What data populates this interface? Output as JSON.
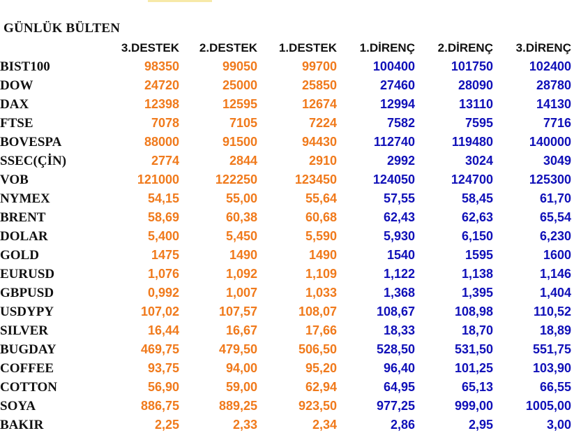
{
  "title": "GÜNLÜK BÜLTEN",
  "colors": {
    "support": "#f07a1c",
    "resistance": "#1010b8",
    "label": "#111111"
  },
  "columns": [
    "3.DESTEK",
    "2.DESTEK",
    "1.DESTEK",
    "1.DİRENÇ",
    "2.DİRENÇ",
    "3.DİRENÇ"
  ],
  "rows": [
    {
      "name": "BIST100",
      "values": [
        "98350",
        "99050",
        "99700",
        "100400",
        "101750",
        "102400"
      ]
    },
    {
      "name": "DOW",
      "values": [
        "24720",
        "25000",
        "25850",
        "27460",
        "28090",
        "28780"
      ]
    },
    {
      "name": "DAX",
      "values": [
        "12398",
        "12595",
        "12674",
        "12994",
        "13110",
        "14130"
      ]
    },
    {
      "name": "FTSE",
      "values": [
        "7078",
        "7105",
        "7224",
        "7582",
        "7595",
        "7716"
      ]
    },
    {
      "name": "BOVESPA",
      "values": [
        "88000",
        "91500",
        "94430",
        "112740",
        "119480",
        "140000"
      ]
    },
    {
      "name": "SSEC(ÇİN)",
      "values": [
        "2774",
        "2844",
        "2910",
        "2992",
        "3024",
        "3049"
      ]
    },
    {
      "name": "VOB",
      "values": [
        "121000",
        "122250",
        "123450",
        "124050",
        "124700",
        "125300"
      ]
    },
    {
      "name": "NYMEX",
      "values": [
        "54,15",
        "55,00",
        "55,64",
        "57,55",
        "58,45",
        "61,70"
      ]
    },
    {
      "name": "BRENT",
      "values": [
        "58,69",
        "60,38",
        "60,68",
        "62,43",
        "62,63",
        "65,54"
      ]
    },
    {
      "name": "DOLAR",
      "values": [
        "5,400",
        "5,450",
        "5,590",
        "5,930",
        "6,150",
        "6,230"
      ]
    },
    {
      "name": "GOLD",
      "values": [
        "1475",
        "1490",
        "1490",
        "1540",
        "1595",
        "1600"
      ]
    },
    {
      "name": "EURUSD",
      "values": [
        "1,076",
        "1,092",
        "1,109",
        "1,122",
        "1,138",
        "1,146"
      ]
    },
    {
      "name": "GBPUSD",
      "values": [
        "0,992",
        "1,007",
        "1,033",
        "1,368",
        "1,395",
        "1,404"
      ]
    },
    {
      "name": "USDYPY",
      "values": [
        "107,02",
        "107,57",
        "108,07",
        "108,67",
        "108,98",
        "110,52"
      ]
    },
    {
      "name": "SILVER",
      "values": [
        "16,44",
        "16,67",
        "17,66",
        "18,33",
        "18,70",
        "18,89"
      ]
    },
    {
      "name": "BUGDAY",
      "values": [
        "469,75",
        "479,50",
        "506,50",
        "528,50",
        "531,50",
        "551,75"
      ]
    },
    {
      "name": "COFFEE",
      "values": [
        "93,75",
        "94,00",
        "95,20",
        "96,40",
        "101,25",
        "103,90"
      ]
    },
    {
      "name": "COTTON",
      "values": [
        "56,90",
        "59,00",
        "62,94",
        "64,95",
        "65,13",
        "66,55"
      ]
    },
    {
      "name": "SOYA",
      "values": [
        "886,75",
        "889,25",
        "923,50",
        "977,25",
        "999,00",
        "1005,00"
      ]
    },
    {
      "name": "BAKIR",
      "values": [
        "2,25",
        "2,33",
        "2,34",
        "2,86",
        "2,95",
        "3,00"
      ]
    }
  ]
}
